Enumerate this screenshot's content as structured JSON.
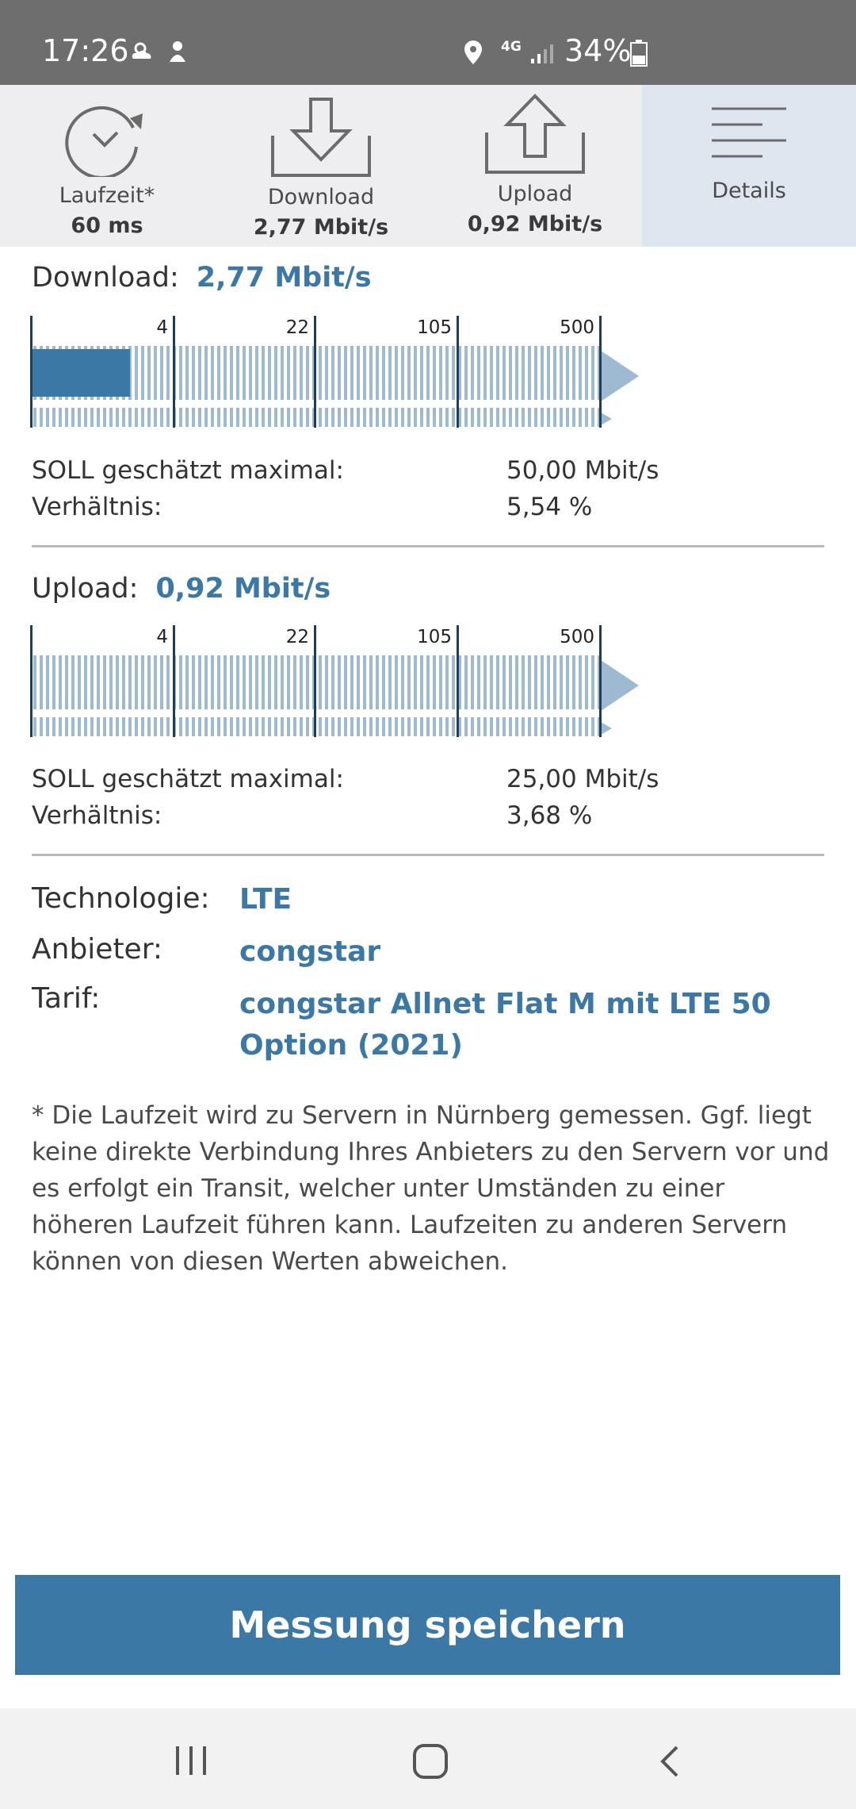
{
  "status_bar": {
    "time": "17:26",
    "network": "4G",
    "battery": "34%",
    "icons": [
      "weather-icon",
      "notification-icon",
      "location-icon",
      "network-4g-icon",
      "signal-icon",
      "battery-icon"
    ]
  },
  "tabs": [
    {
      "label": "Laufzeit*",
      "value": "60 ms",
      "icon": "latency-clock-icon"
    },
    {
      "label": "Download",
      "value": "2,77 Mbit/s",
      "icon": "download-icon"
    },
    {
      "label": "Upload",
      "value": "0,92 Mbit/s",
      "icon": "upload-icon"
    },
    {
      "label": "Details",
      "value": "",
      "icon": "details-menu-icon"
    }
  ],
  "download": {
    "label": "Download:",
    "value": "2,77 Mbit/s",
    "scale_ticks": [
      "4",
      "22",
      "105",
      "500"
    ],
    "fill_fraction": 0.18,
    "soll_label": "SOLL geschätzt maximal:",
    "soll_value": "50,00 Mbit/s",
    "ratio_label": "Verhältnis:",
    "ratio_value": "5,54 %"
  },
  "upload": {
    "label": "Upload:",
    "value": "0,92 Mbit/s",
    "scale_ticks": [
      "4",
      "22",
      "105",
      "500"
    ],
    "fill_fraction": 0,
    "soll_label": "SOLL geschätzt maximal:",
    "soll_value": "25,00 Mbit/s",
    "ratio_label": "Verhältnis:",
    "ratio_value": "3,68 %"
  },
  "info": {
    "technology_label": "Technologie:",
    "technology_value": "LTE",
    "provider_label": "Anbieter:",
    "provider_value": "congstar",
    "tariff_label": "Tarif:",
    "tariff_value": "congstar Allnet Flat M mit LTE 50 Option (2021)"
  },
  "footnote": "* Die Laufzeit wird zu Servern in Nürnberg gemessen. Ggf. liegt keine direkte Verbindung Ihres Anbieters zu den Servern vor und es erfolgt ein Transit, welcher unter Umständen zu einer höheren Laufzeit führen kann. Laufzeiten zu anderen Servern können von diesen Werten abweichen.",
  "save_button": "Messung speichern",
  "colors": {
    "accent": "#3b78a6",
    "gauge_stripe": "#9dbad2",
    "status_bar": "#6e6e6e",
    "tab_bg": "#eeeef1",
    "tab_active_bg": "#dfe6ef"
  }
}
